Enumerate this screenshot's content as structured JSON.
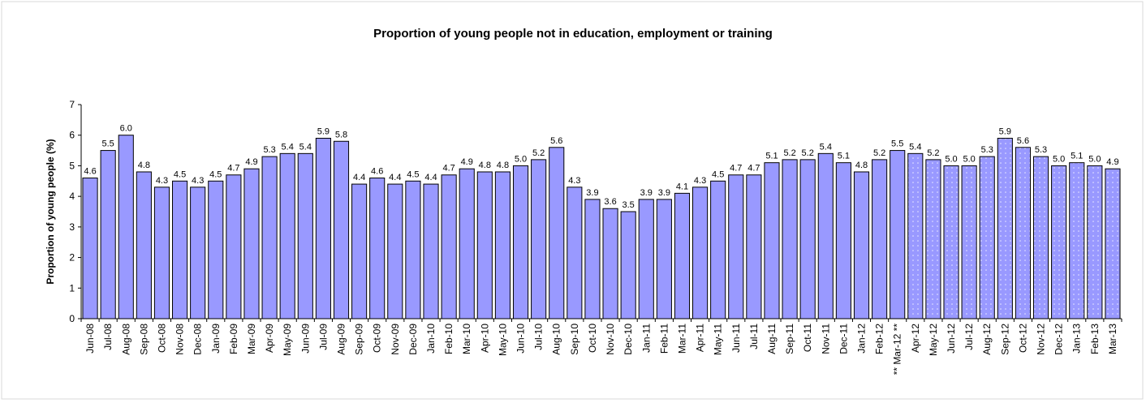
{
  "chart_data": {
    "type": "bar",
    "title": "Proportion of young people not in education, employment or training",
    "y_label": "Proportion of young people (%)",
    "categories": [
      "Jun-08",
      "Jul-08",
      "Aug-08",
      "Sep-08",
      "Oct-08",
      "Nov-08",
      "Dec-08",
      "Jan-09",
      "Feb-09",
      "Mar-09",
      "Apr-09",
      "May-09",
      "Jun-09",
      "Jul-09",
      "Aug-09",
      "Sep-09",
      "Oct-09",
      "Nov-09",
      "Dec-09",
      "Jan-10",
      "Feb-10",
      "Mar-10",
      "Apr-10",
      "May-10",
      "Jun-10",
      "Jul-10",
      "Aug-10",
      "Sep-10",
      "Oct-10",
      "Nov-10",
      "Dec-10",
      "Jan-11",
      "Feb-11",
      "Mar-11",
      "Apr-11",
      "May-11",
      "Jun-11",
      "Jul-11",
      "Aug-11",
      "Sep-11",
      "Oct-11",
      "Nov-11",
      "Dec-11",
      "Jan-12",
      "Feb-12",
      "** Mar-12 **",
      "Apr-12",
      "May-12",
      "Jun-12",
      "Jul-12",
      "Aug-12",
      "Sep-12",
      "Oct-12",
      "Nov-12",
      "Dec-12",
      "Jan-13",
      "Feb-13",
      "Mar-13"
    ],
    "values": [
      4.6,
      5.5,
      6.0,
      4.8,
      4.3,
      4.5,
      4.3,
      4.5,
      4.7,
      4.9,
      5.3,
      5.4,
      5.4,
      5.9,
      5.8,
      4.4,
      4.6,
      4.4,
      4.5,
      4.4,
      4.7,
      4.9,
      4.8,
      4.8,
      5.0,
      5.2,
      5.6,
      4.3,
      3.9,
      3.6,
      3.5,
      3.9,
      3.9,
      4.1,
      4.3,
      4.5,
      4.7,
      4.7,
      5.1,
      5.2,
      5.2,
      5.4,
      5.1,
      4.8,
      5.2,
      5.5,
      5.4,
      5.2,
      5.0,
      5.0,
      5.3,
      5.9,
      5.6,
      5.3,
      5.0,
      5.1,
      5.0,
      4.9
    ],
    "value_labels": [
      "4.6",
      "5.5",
      "6.0",
      "4.8",
      "4.3",
      "4.5",
      "4.3",
      "4.5",
      "4.7",
      "4.9",
      "5.3",
      "5.4",
      "5.4",
      "5.9",
      "5.8",
      "4.4",
      "4.6",
      "4.4",
      "4.5",
      "4.4",
      "4.7",
      "4.9",
      "4.8",
      "4.8",
      "5.0",
      "5.2",
      "5.6",
      "4.3",
      "3.9",
      "3.6",
      "3.5",
      "3.9",
      "3.9",
      "4.1",
      "4.3",
      "4.5",
      "4.7",
      "4.7",
      "5.1",
      "5.2",
      "5.2",
      "5.4",
      "5.1",
      "4.8",
      "5.2",
      "5.5",
      "5.4",
      "5.2",
      "5.0",
      "5.0",
      "5.3",
      "5.9",
      "5.6",
      "5.3",
      "5.0",
      "5.1",
      "5.0",
      "4.9"
    ],
    "styles": [
      "solid",
      "solid",
      "solid",
      "solid",
      "solid",
      "solid",
      "solid",
      "solid",
      "solid",
      "solid",
      "solid",
      "solid",
      "solid",
      "solid",
      "solid",
      "solid",
      "solid",
      "solid",
      "solid",
      "solid",
      "solid",
      "solid",
      "solid",
      "solid",
      "solid",
      "solid",
      "solid",
      "solid",
      "solid",
      "solid",
      "solid",
      "solid",
      "solid",
      "solid",
      "solid",
      "solid",
      "solid",
      "solid",
      "solid",
      "solid",
      "solid",
      "solid",
      "solid",
      "solid",
      "solid",
      "solid",
      "dotted",
      "dotted",
      "dotted",
      "dotted",
      "dotted",
      "dotted",
      "dotted",
      "dotted",
      "dotted",
      "dotted",
      "dotted",
      "dotted"
    ],
    "color": "#9999ff",
    "ylim": [
      0,
      7
    ],
    "yticks": [
      0,
      1,
      2,
      3,
      4,
      5,
      6,
      7
    ],
    "grid": false
  }
}
